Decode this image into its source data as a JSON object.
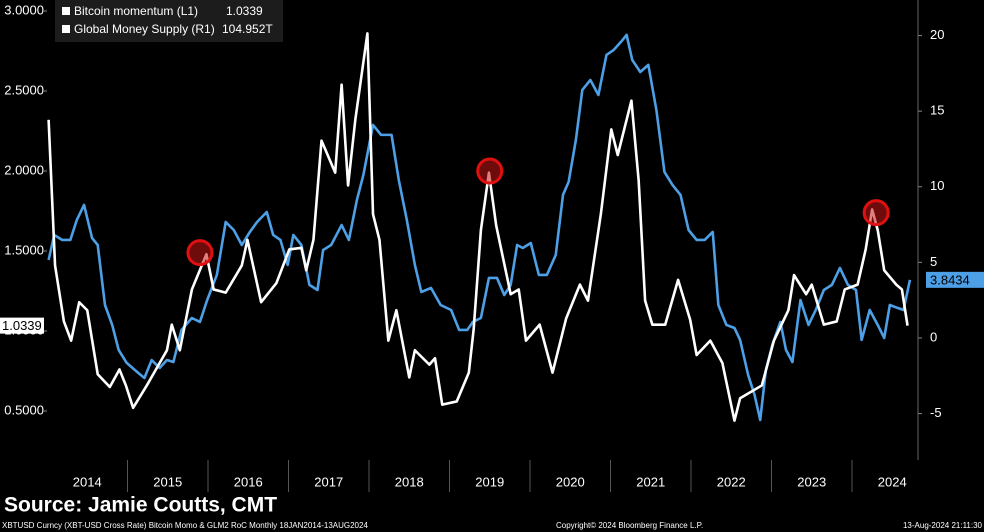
{
  "chart_data": {
    "type": "line",
    "xlim": [
      2014,
      2024.82
    ],
    "ylim": [
      0.194,
      3.069
    ],
    "y2lim": [
      -8.07,
      22.35
    ],
    "yticks": [
      {
        "value": 0.5,
        "label": "0.5000"
      },
      {
        "value": 1.0,
        "label": "1.0000"
      },
      {
        "value": 1.5,
        "label": "1.5000"
      },
      {
        "value": 2.0,
        "label": "2.0000"
      },
      {
        "value": 2.5,
        "label": "2.5000"
      },
      {
        "value": 3.0,
        "label": "3.0000"
      }
    ],
    "y2ticks": [
      -5,
      0,
      5,
      10,
      15,
      20
    ],
    "xticks": [
      {
        "value": 2014.5,
        "label": "2014"
      },
      {
        "value": 2015.5,
        "label": "2015"
      },
      {
        "value": 2016.5,
        "label": "2016"
      },
      {
        "value": 2017.5,
        "label": "2017"
      },
      {
        "value": 2018.5,
        "label": "2018"
      },
      {
        "value": 2019.5,
        "label": "2019"
      },
      {
        "value": 2020.5,
        "label": "2020"
      },
      {
        "value": 2021.5,
        "label": "2021"
      },
      {
        "value": 2022.5,
        "label": "2022"
      },
      {
        "value": 2023.5,
        "label": "2023"
      },
      {
        "value": 2024.5,
        "label": "2024"
      }
    ],
    "xtick_lines": [
      2015,
      2016,
      2017,
      2018,
      2019,
      2020,
      2021,
      2022,
      2023,
      2024
    ],
    "series": [
      {
        "name": "Bitcoin momentum (L1)",
        "color": "#ffffff",
        "axis": "y",
        "x": [
          2014.02,
          2014.1,
          2014.21,
          2014.3,
          2014.4,
          2014.5,
          2014.63,
          2014.78,
          2014.9,
          2014.98,
          2015.07,
          2015.24,
          2015.49,
          2015.55,
          2015.65,
          2015.8,
          2015.98,
          2016.07,
          2016.22,
          2016.42,
          2016.49,
          2016.66,
          2016.85,
          2017.01,
          2017.16,
          2017.22,
          2017.31,
          2017.41,
          2017.58,
          2017.66,
          2017.74,
          2017.83,
          2017.98,
          2018.05,
          2018.13,
          2018.24,
          2018.34,
          2018.5,
          2018.57,
          2018.75,
          2018.82,
          2018.91,
          2019.09,
          2019.24,
          2019.3,
          2019.39,
          2019.49,
          2019.58,
          2019.76,
          2019.86,
          2019.95,
          2020.12,
          2020.28,
          2020.45,
          2020.62,
          2020.72,
          2020.88,
          2021.01,
          2021.09,
          2021.26,
          2021.35,
          2021.43,
          2021.52,
          2021.68,
          2021.84,
          2021.99,
          2022.07,
          2022.24,
          2022.39,
          2022.54,
          2022.61,
          2022.88,
          2023.03,
          2023.21,
          2023.28,
          2023.43,
          2023.5,
          2023.65,
          2023.81,
          2023.91,
          2024.07,
          2024.17,
          2024.25,
          2024.32,
          2024.4,
          2024.55,
          2024.62,
          2024.69
        ],
        "values": [
          2.32,
          1.41,
          1.06,
          0.94,
          1.18,
          1.13,
          0.73,
          0.65,
          0.76,
          0.66,
          0.52,
          0.66,
          0.88,
          1.04,
          0.88,
          1.26,
          1.48,
          1.26,
          1.24,
          1.41,
          1.57,
          1.18,
          1.3,
          1.51,
          1.52,
          1.38,
          1.57,
          2.19,
          1.99,
          2.54,
          1.91,
          2.32,
          2.86,
          1.73,
          1.57,
          0.94,
          1.13,
          0.71,
          0.88,
          0.79,
          0.83,
          0.54,
          0.56,
          0.74,
          1.01,
          1.63,
          1.99,
          1.66,
          1.23,
          1.26,
          0.94,
          1.04,
          0.74,
          1.08,
          1.29,
          1.19,
          1.73,
          2.26,
          2.1,
          2.44,
          1.94,
          1.19,
          1.04,
          1.04,
          1.32,
          1.07,
          0.85,
          0.94,
          0.8,
          0.44,
          0.58,
          0.66,
          0.94,
          1.13,
          1.35,
          1.23,
          1.29,
          1.04,
          1.06,
          1.26,
          1.29,
          1.51,
          1.76,
          1.63,
          1.38,
          1.29,
          1.26,
          1.0339
        ]
      },
      {
        "name": "Global Money Supply  (R1)",
        "color": "#4d9fe6",
        "axis": "y2",
        "legend_value": "104.952T",
        "x": [
          2014.02,
          2014.09,
          2014.19,
          2014.29,
          2014.37,
          2014.46,
          2014.56,
          2014.63,
          2014.72,
          2014.81,
          2014.89,
          2014.99,
          2015.12,
          2015.21,
          2015.3,
          2015.4,
          2015.49,
          2015.57,
          2015.67,
          2015.8,
          2015.9,
          2015.99,
          2016.11,
          2016.22,
          2016.32,
          2016.42,
          2016.52,
          2016.61,
          2016.73,
          2016.81,
          2016.9,
          2016.99,
          2017.06,
          2017.16,
          2017.26,
          2017.36,
          2017.43,
          2017.53,
          2017.66,
          2017.75,
          2017.85,
          2017.93,
          2018.05,
          2018.15,
          2018.28,
          2018.37,
          2018.47,
          2018.57,
          2018.65,
          2018.77,
          2018.89,
          2019.02,
          2019.12,
          2019.22,
          2019.29,
          2019.39,
          2019.49,
          2019.59,
          2019.68,
          2019.76,
          2019.84,
          2019.91,
          2020.01,
          2020.11,
          2020.21,
          2020.32,
          2020.41,
          2020.48,
          2020.57,
          2020.65,
          2020.75,
          2020.85,
          2020.95,
          2021.04,
          2021.13,
          2021.2,
          2021.27,
          2021.37,
          2021.47,
          2021.57,
          2021.67,
          2021.77,
          2021.87,
          2021.97,
          2022.07,
          2022.17,
          2022.27,
          2022.34,
          2022.44,
          2022.54,
          2022.61,
          2022.71,
          2022.79,
          2022.86,
          2022.93,
          2023.01,
          2023.11,
          2023.18,
          2023.26,
          2023.36,
          2023.46,
          2023.55,
          2023.65,
          2023.75,
          2023.85,
          2023.95,
          2024.05,
          2024.12,
          2024.22,
          2024.32,
          2024.4,
          2024.47,
          2024.57,
          2024.64,
          2024.72
        ],
        "values": [
          5.16,
          6.81,
          6.48,
          6.48,
          7.8,
          8.8,
          6.61,
          6.15,
          2.18,
          0.86,
          -0.79,
          -1.65,
          -2.25,
          -2.65,
          -1.46,
          -1.98,
          -1.46,
          -1.59,
          0.53,
          1.32,
          1.06,
          2.51,
          4.17,
          7.67,
          7.14,
          6.15,
          7.01,
          7.67,
          8.33,
          6.81,
          6.48,
          4.83,
          6.81,
          6.15,
          3.51,
          3.17,
          5.82,
          6.15,
          7.47,
          6.48,
          9.13,
          10.78,
          14.09,
          13.43,
          13.43,
          10.45,
          7.8,
          4.83,
          3.04,
          3.31,
          2.18,
          1.85,
          0.53,
          0.53,
          1.06,
          1.32,
          3.97,
          3.97,
          2.84,
          3.51,
          6.15,
          5.95,
          6.28,
          4.17,
          4.17,
          5.49,
          9.46,
          10.32,
          13.1,
          16.4,
          17.06,
          16.07,
          18.72,
          19.05,
          19.58,
          20.04,
          18.39,
          17.59,
          18.06,
          15.08,
          10.98,
          10.12,
          9.46,
          7.14,
          6.48,
          6.48,
          7.01,
          2.18,
          0.86,
          0.66,
          -0.13,
          -2.45,
          -3.77,
          -5.42,
          -2.12,
          -0.46,
          1.06,
          -0.79,
          -1.59,
          2.51,
          0.86,
          1.85,
          3.17,
          3.51,
          4.63,
          3.51,
          3.17,
          -0.13,
          1.85,
          0.86,
          0.0,
          2.18,
          1.98,
          1.85,
          3.8434
        ]
      }
    ],
    "highlights": [
      {
        "x": 2015.9,
        "y": 1.49
      },
      {
        "x": 2019.5,
        "y": 2.0
      },
      {
        "x": 2024.3,
        "y": 1.74
      }
    ],
    "source": "Source: Jamie Coutts, CMT",
    "footer_left": "XBTUSD Curncy (XBT-USD Cross Rate) Bitcoin Momo & GLM2 RoC  Monthly 18JAN2014-13AUG2024",
    "footer_center": "Copyright© 2024 Bloomberg Finance L.P.",
    "footer_right": "13-Aug-2024 21:11:30"
  }
}
